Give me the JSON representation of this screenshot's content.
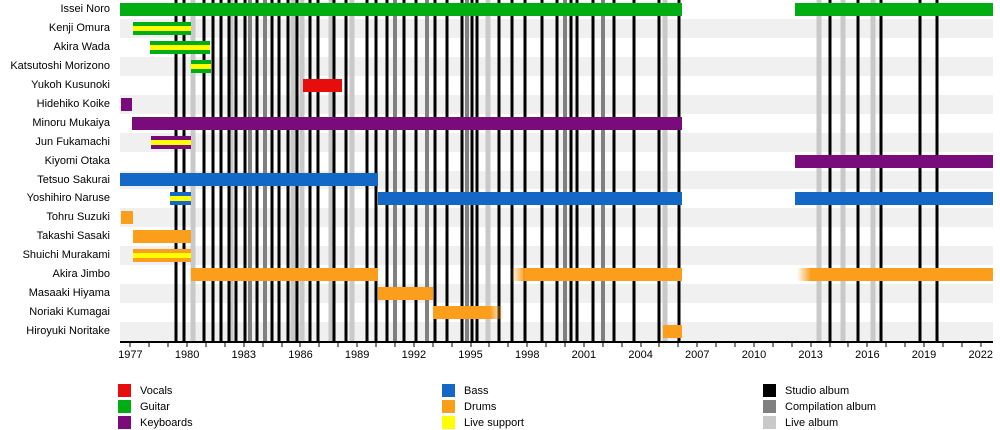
{
  "colors": {
    "vocals": "#E60D0D",
    "guitar": "#00AD12",
    "keyboards": "#7A0B7A",
    "bass": "#1268C4",
    "drums": "#FA9E1C",
    "live_support": "#FFFF00",
    "studio_album": "#000000",
    "compilation_album": "#808080",
    "live_album": "#C9C9C9",
    "row_stripe": "#F0F0F0"
  },
  "chart_data": {
    "type": "timeline",
    "domain": {
      "min_year": 1976.45,
      "max_year": 2022.65
    },
    "axis_labels": [
      1977,
      1980,
      1983,
      1986,
      1989,
      1992,
      1995,
      1998,
      2001,
      2004,
      2007,
      2010,
      2013,
      2016,
      2019,
      2022
    ],
    "members": [
      {
        "name": "Issei Noro",
        "role": "guitar",
        "segments": [
          {
            "start": 1976.47,
            "end": 2006.2
          },
          {
            "start": 2012.15,
            "end": 2022.63
          }
        ]
      },
      {
        "name": "Kenji Omura",
        "role": "guitar",
        "segments": [
          {
            "start": 1977.15,
            "end": 1980.2,
            "live_support": true
          }
        ]
      },
      {
        "name": "Akira Wada",
        "role": "guitar",
        "segments": [
          {
            "start": 1978.05,
            "end": 1981.2,
            "live_support": true
          }
        ]
      },
      {
        "name": "Katsutoshi Morizono",
        "role": "guitar",
        "segments": [
          {
            "start": 1980.2,
            "end": 1981.25,
            "live_support": true
          }
        ]
      },
      {
        "name": "Yukoh Kusunoki",
        "role": "vocals",
        "segments": [
          {
            "start": 1986.15,
            "end": 1988.2
          }
        ]
      },
      {
        "name": "Hidehiko Koike",
        "role": "keyboards",
        "segments": [
          {
            "start": 1976.5,
            "end": 1977.1
          }
        ]
      },
      {
        "name": "Minoru Mukaiya",
        "role": "keyboards",
        "segments": [
          {
            "start": 1977.1,
            "end": 2006.2
          }
        ]
      },
      {
        "name": "Jun Fukamachi",
        "role": "keyboards",
        "segments": [
          {
            "start": 1978.1,
            "end": 1980.2,
            "live_support": true
          }
        ]
      },
      {
        "name": "Kiyomi Otaka",
        "role": "keyboards",
        "segments": [
          {
            "start": 2012.15,
            "end": 2022.63
          }
        ]
      },
      {
        "name": "Tetsuo Sakurai",
        "role": "bass",
        "segments": [
          {
            "start": 1976.47,
            "end": 1990.1
          }
        ]
      },
      {
        "name": "Yoshihiro Naruse",
        "role": "bass",
        "segments": [
          {
            "start": 1979.1,
            "end": 1980.2,
            "live_support": true
          },
          {
            "start": 1990.1,
            "end": 2006.2
          },
          {
            "start": 2012.15,
            "end": 2022.63
          }
        ]
      },
      {
        "name": "Tohru Suzuki",
        "role": "drums",
        "segments": [
          {
            "start": 1976.5,
            "end": 1977.15
          }
        ]
      },
      {
        "name": "Takashi Sasaki",
        "role": "drums",
        "segments": [
          {
            "start": 1977.15,
            "end": 1980.2
          }
        ]
      },
      {
        "name": "Shuichi Murakami",
        "role": "drums",
        "segments": [
          {
            "start": 1977.15,
            "end": 1980.2,
            "live_support": true
          }
        ]
      },
      {
        "name": "Akira Jimbo",
        "role": "drums",
        "segments": [
          {
            "start": 1980.2,
            "end": 1990.1
          },
          {
            "start": 1997.15,
            "end": 2006.2,
            "fade": "left"
          },
          {
            "start": 2012.3,
            "end": 2022.63,
            "fade": "left"
          }
        ]
      },
      {
        "name": "Masaaki Hiyama",
        "role": "drums",
        "segments": [
          {
            "start": 1990.1,
            "end": 1993.0
          }
        ]
      },
      {
        "name": "Noriaki Kumagai",
        "role": "drums",
        "segments": [
          {
            "start": 1993.0,
            "end": 1996.75,
            "fade": "right"
          }
        ]
      },
      {
        "name": "Hiroyuki Noritake",
        "role": "drums",
        "segments": [
          {
            "start": 2005.2,
            "end": 2006.2
          }
        ]
      }
    ],
    "albums": [
      {
        "year": 1979.4,
        "type": "studio"
      },
      {
        "year": 1979.85,
        "type": "studio"
      },
      {
        "year": 1980.3,
        "type": "live"
      },
      {
        "year": 1980.9,
        "type": "studio"
      },
      {
        "year": 1981.35,
        "type": "studio"
      },
      {
        "year": 1981.8,
        "type": "studio"
      },
      {
        "year": 1982.2,
        "type": "studio"
      },
      {
        "year": 1982.35,
        "type": "live"
      },
      {
        "year": 1982.6,
        "type": "studio"
      },
      {
        "year": 1983.05,
        "type": "studio"
      },
      {
        "year": 1983.35,
        "type": "compilation"
      },
      {
        "year": 1983.7,
        "type": "studio"
      },
      {
        "year": 1984.1,
        "type": "compilation"
      },
      {
        "year": 1984.5,
        "type": "studio"
      },
      {
        "year": 1984.85,
        "type": "studio"
      },
      {
        "year": 1985.35,
        "type": "studio"
      },
      {
        "year": 1985.6,
        "type": "live"
      },
      {
        "year": 1985.8,
        "type": "studio"
      },
      {
        "year": 1986.1,
        "type": "live"
      },
      {
        "year": 1986.5,
        "type": "studio"
      },
      {
        "year": 1986.95,
        "type": "studio"
      },
      {
        "year": 1987.6,
        "type": "live"
      },
      {
        "year": 1987.8,
        "type": "studio"
      },
      {
        "year": 1988.4,
        "type": "studio"
      },
      {
        "year": 1988.75,
        "type": "live"
      },
      {
        "year": 1989.5,
        "type": "studio"
      },
      {
        "year": 1990.0,
        "type": "studio"
      },
      {
        "year": 1990.6,
        "type": "studio"
      },
      {
        "year": 1991.0,
        "type": "compilation"
      },
      {
        "year": 1991.5,
        "type": "studio"
      },
      {
        "year": 1992.1,
        "type": "studio"
      },
      {
        "year": 1992.7,
        "type": "compilation"
      },
      {
        "year": 1993.1,
        "type": "studio"
      },
      {
        "year": 1993.75,
        "type": "studio"
      },
      {
        "year": 1994.55,
        "type": "studio"
      },
      {
        "year": 1994.8,
        "type": "compilation"
      },
      {
        "year": 1995.1,
        "type": "studio"
      },
      {
        "year": 1995.35,
        "type": "studio"
      },
      {
        "year": 1995.9,
        "type": "live"
      },
      {
        "year": 1996.5,
        "type": "studio"
      },
      {
        "year": 1997.2,
        "type": "studio"
      },
      {
        "year": 1997.9,
        "type": "studio"
      },
      {
        "year": 1998.8,
        "type": "studio"
      },
      {
        "year": 1999.6,
        "type": "studio"
      },
      {
        "year": 2000.0,
        "type": "compilation"
      },
      {
        "year": 2000.3,
        "type": "studio"
      },
      {
        "year": 2000.65,
        "type": "studio"
      },
      {
        "year": 2001.5,
        "type": "studio"
      },
      {
        "year": 2002.0,
        "type": "compilation"
      },
      {
        "year": 2002.6,
        "type": "studio"
      },
      {
        "year": 2003.65,
        "type": "studio"
      },
      {
        "year": 2004.95,
        "type": "studio"
      },
      {
        "year": 2005.3,
        "type": "live"
      },
      {
        "year": 2006.05,
        "type": "studio"
      },
      {
        "year": 2013.45,
        "type": "live"
      },
      {
        "year": 2014.0,
        "type": "studio"
      },
      {
        "year": 2014.7,
        "type": "live"
      },
      {
        "year": 2015.5,
        "type": "studio"
      },
      {
        "year": 2016.3,
        "type": "live"
      },
      {
        "year": 2016.7,
        "type": "studio"
      },
      {
        "year": 2018.8,
        "type": "studio"
      },
      {
        "year": 2019.7,
        "type": "studio"
      }
    ]
  },
  "legend": {
    "columns": [
      [
        {
          "label": "Vocals",
          "color_key": "vocals"
        },
        {
          "label": "Guitar",
          "color_key": "guitar"
        },
        {
          "label": "Keyboards",
          "color_key": "keyboards"
        }
      ],
      [
        {
          "label": "Bass",
          "color_key": "bass"
        },
        {
          "label": "Drums",
          "color_key": "drums"
        },
        {
          "label": "Live support",
          "color_key": "live_support"
        }
      ],
      [
        {
          "label": "Studio album",
          "color_key": "studio_album"
        },
        {
          "label": "Compilation album",
          "color_key": "compilation_album"
        },
        {
          "label": "Live album",
          "color_key": "live_album"
        }
      ]
    ]
  }
}
